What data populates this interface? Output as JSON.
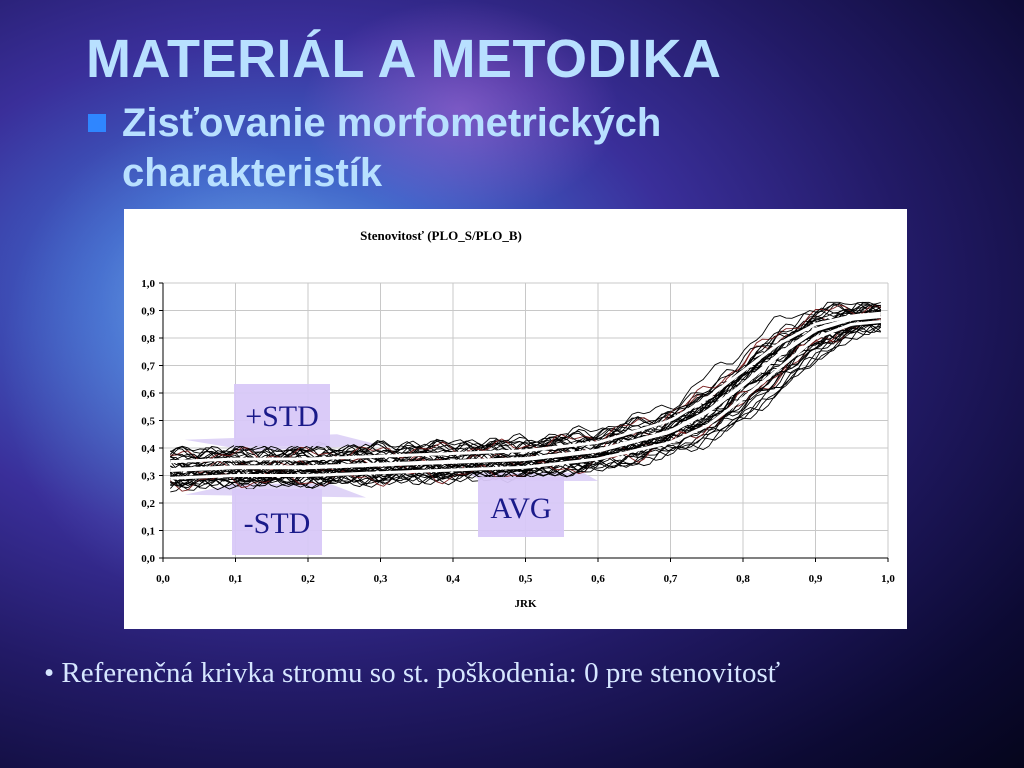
{
  "slide": {
    "title": "MATERIÁL A METODIKA",
    "bullet": "Zisťovanie   morfometrických\ncharakteristík",
    "note": "• Referenčná krivka stromu so st. poškodenia: 0 pre stenovitosť"
  },
  "colors": {
    "title": "#b8e0ff",
    "bullet_square": "#2f86ff",
    "std_label_box": "#d8c8f8",
    "avg_line": "#ffffff",
    "curves": "#000000"
  },
  "chart_data": {
    "type": "line",
    "title": "Stenovitosť (PLO_S/PLO_B)",
    "xlabel": "JRK",
    "ylabel": "",
    "xlim": [
      0,
      1
    ],
    "ylim": [
      0,
      1
    ],
    "x_ticks": [
      "0,0",
      "0,1",
      "0,2",
      "0,3",
      "0,4",
      "0,5",
      "0,6",
      "0,7",
      "0,8",
      "0,9",
      "1,0"
    ],
    "y_ticks": [
      "0,0",
      "0,1",
      "0,2",
      "0,3",
      "0,4",
      "0,5",
      "0,6",
      "0,7",
      "0,8",
      "0,9",
      "1,0"
    ],
    "grid": true,
    "x": [
      0.01,
      0.1,
      0.2,
      0.3,
      0.4,
      0.5,
      0.6,
      0.7,
      0.75,
      0.8,
      0.85,
      0.9,
      0.95,
      0.99
    ],
    "series": [
      {
        "name": "+STD",
        "values": [
          0.35,
          0.36,
          0.36,
          0.37,
          0.38,
          0.39,
          0.42,
          0.5,
          0.58,
          0.68,
          0.78,
          0.85,
          0.88,
          0.89
        ]
      },
      {
        "name": "AVG",
        "values": [
          0.32,
          0.33,
          0.33,
          0.34,
          0.35,
          0.36,
          0.39,
          0.46,
          0.53,
          0.63,
          0.74,
          0.83,
          0.87,
          0.88
        ]
      },
      {
        "name": "-STD",
        "values": [
          0.29,
          0.3,
          0.3,
          0.31,
          0.32,
          0.33,
          0.36,
          0.42,
          0.48,
          0.58,
          0.69,
          0.8,
          0.85,
          0.86
        ]
      }
    ],
    "annotations": [
      "+STD",
      "AVG",
      "-STD"
    ]
  }
}
